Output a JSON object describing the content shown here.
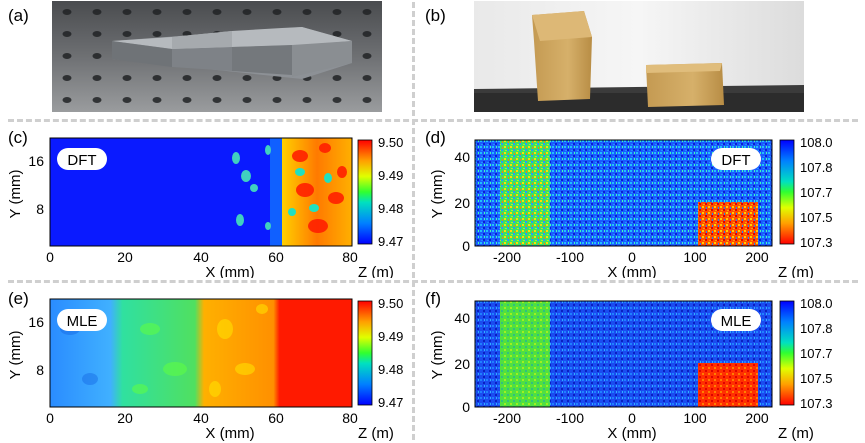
{
  "panels": {
    "a": {
      "tag": "(a)"
    },
    "b": {
      "tag": "(b)"
    },
    "c": {
      "tag": "(c)",
      "method": "DFT",
      "xlabel": "X (mm)",
      "ylabel": "Y (mm)",
      "colorbar_label": "Z (m)"
    },
    "d": {
      "tag": "(d)",
      "method": "DFT",
      "xlabel": "X (mm)",
      "ylabel": "Y (mm)",
      "colorbar_label": "Z (m)"
    },
    "e": {
      "tag": "(e)",
      "method": "MLE",
      "xlabel": "X (mm)",
      "ylabel": "Y (mm)",
      "colorbar_label": "Z (m)"
    },
    "f": {
      "tag": "(f)",
      "method": "MLE",
      "xlabel": "X (mm)",
      "ylabel": "Y (mm)",
      "colorbar_label": "Z (m)"
    }
  },
  "chart_data": [
    {
      "panel": "c",
      "type": "heatmap",
      "x_ticks": [
        "0",
        "20",
        "40",
        "60",
        "80"
      ],
      "y_ticks": [
        "8",
        "16"
      ],
      "xlim": [
        0,
        80
      ],
      "ylim": [
        0,
        20
      ],
      "colorbar_ticks": [
        "9.50",
        "9.49",
        "9.48",
        "9.47"
      ],
      "zlim": [
        9.47,
        9.5
      ]
    },
    {
      "panel": "d",
      "type": "heatmap",
      "x_ticks": [
        "-200",
        "-100",
        "0",
        "100",
        "200"
      ],
      "y_ticks": [
        "0",
        "20",
        "40"
      ],
      "xlim": [
        -250,
        225
      ],
      "ylim": [
        0,
        48
      ],
      "colorbar_ticks": [
        "108.0",
        "107.8",
        "107.7",
        "107.5",
        "107.3"
      ],
      "zlim": [
        107.3,
        108.0
      ]
    },
    {
      "panel": "e",
      "type": "heatmap",
      "x_ticks": [
        "0",
        "20",
        "40",
        "60",
        "80"
      ],
      "y_ticks": [
        "8",
        "16"
      ],
      "xlim": [
        0,
        80
      ],
      "ylim": [
        0,
        20
      ],
      "colorbar_ticks": [
        "9.50",
        "9.49",
        "9.48",
        "9.47"
      ],
      "zlim": [
        9.47,
        9.5
      ]
    },
    {
      "panel": "f",
      "type": "heatmap",
      "x_ticks": [
        "-200",
        "-100",
        "0",
        "100",
        "200"
      ],
      "y_ticks": [
        "0",
        "20",
        "40"
      ],
      "xlim": [
        -250,
        225
      ],
      "ylim": [
        0,
        48
      ],
      "colorbar_ticks": [
        "108.0",
        "107.8",
        "107.7",
        "107.5",
        "107.3"
      ],
      "zlim": [
        107.3,
        108.0
      ]
    }
  ]
}
